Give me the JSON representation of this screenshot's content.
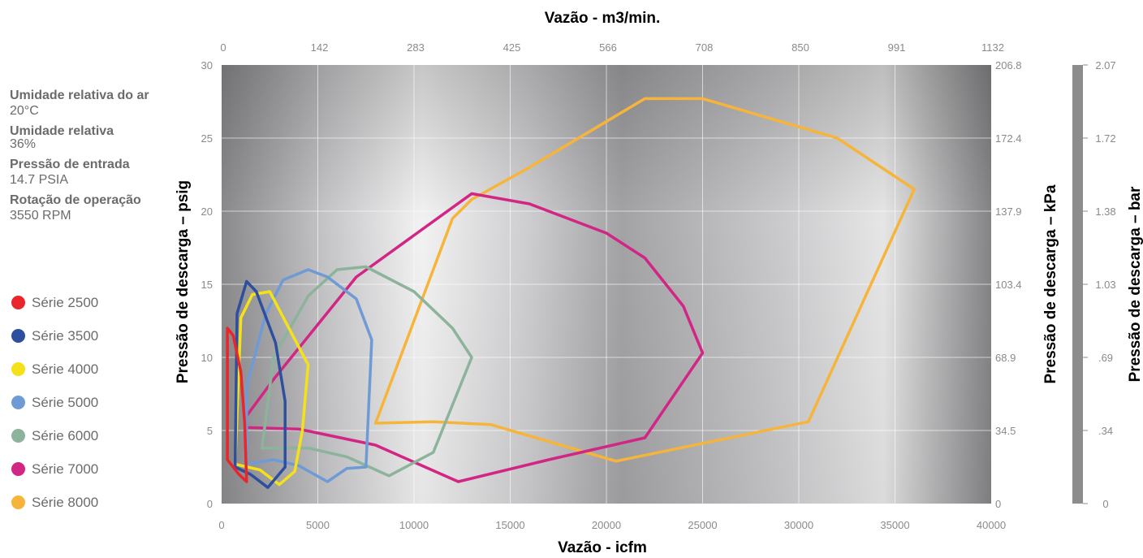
{
  "info": [
    {
      "label": "Umidade relativa do ar",
      "value": "20°C"
    },
    {
      "label": "Umidade relativa",
      "value": "36%"
    },
    {
      "label": "Pressão de entrada",
      "value": "14.7 PSIA"
    },
    {
      "label": "Rotação de operação",
      "value": "3550 RPM"
    }
  ],
  "chart_data": {
    "type": "area",
    "title": "Vazão - m3/min.",
    "xlabel": "Vazão - icfm",
    "ylabel": "Pressão de descarga – psig",
    "y2label": "Pressão de descarga – kPa",
    "y3label": "Pressão de descarga – bar",
    "xlim": [
      0,
      40000
    ],
    "ylim": [
      0,
      30
    ],
    "x_ticks": [
      "0",
      "5000",
      "10000",
      "15000",
      "20000",
      "25000",
      "30000",
      "35000",
      "40000"
    ],
    "x_top_ticks": [
      "0",
      "142",
      "283",
      "425",
      "566",
      "708",
      "850",
      "991",
      "1132"
    ],
    "y_ticks": [
      "0",
      "5",
      "10",
      "15",
      "20",
      "25",
      "30"
    ],
    "y_right_ticks": [
      "0",
      "34.5",
      "68.9",
      "103.4",
      "137.9",
      "172.4",
      "206.8"
    ],
    "bar_ticks": [
      "0",
      ".34",
      ".69",
      "1.03",
      "1.38",
      "1.72",
      "2.07"
    ],
    "grid": true,
    "legend_position": "left",
    "series": [
      {
        "name": "Série 2500",
        "color": "#e8262b",
        "points": [
          [
            300,
            3
          ],
          [
            300,
            12
          ],
          [
            600,
            11.5
          ],
          [
            1000,
            9
          ],
          [
            1200,
            5.5
          ],
          [
            1300,
            1.5
          ],
          [
            900,
            2
          ],
          [
            300,
            3
          ]
        ]
      },
      {
        "name": "Série 3500",
        "color": "#2e4f9e",
        "points": [
          [
            700,
            2.5
          ],
          [
            800,
            13
          ],
          [
            1300,
            15.2
          ],
          [
            1800,
            14.5
          ],
          [
            2800,
            11
          ],
          [
            3300,
            7
          ],
          [
            3300,
            2.5
          ],
          [
            2400,
            1.1
          ],
          [
            1500,
            2
          ],
          [
            700,
            2.5
          ]
        ]
      },
      {
        "name": "Série 4000",
        "color": "#f5e11a",
        "points": [
          [
            700,
            2.7
          ],
          [
            1000,
            12.7
          ],
          [
            1600,
            14.3
          ],
          [
            2500,
            14.5
          ],
          [
            3500,
            12
          ],
          [
            4500,
            9.5
          ],
          [
            4200,
            5
          ],
          [
            3800,
            2.2
          ],
          [
            3000,
            1.3
          ],
          [
            2000,
            2.3
          ],
          [
            700,
            2.7
          ]
        ]
      },
      {
        "name": "Série 5000",
        "color": "#6e9bd5",
        "points": [
          [
            1300,
            2.7
          ],
          [
            1300,
            8
          ],
          [
            2300,
            13
          ],
          [
            3200,
            15.3
          ],
          [
            4500,
            16
          ],
          [
            5500,
            15.5
          ],
          [
            7000,
            14
          ],
          [
            7800,
            11.2
          ],
          [
            7500,
            2.5
          ],
          [
            6500,
            2.4
          ],
          [
            5500,
            1.5
          ],
          [
            4000,
            2.6
          ],
          [
            2700,
            3
          ],
          [
            1300,
            2.7
          ]
        ]
      },
      {
        "name": "Série 6000",
        "color": "#8cb39b",
        "points": [
          [
            2100,
            3.8
          ],
          [
            2700,
            10
          ],
          [
            4500,
            14.2
          ],
          [
            6000,
            16
          ],
          [
            7500,
            16.2
          ],
          [
            10000,
            14.5
          ],
          [
            12000,
            12
          ],
          [
            13000,
            10
          ],
          [
            11000,
            3.5
          ],
          [
            8700,
            1.9
          ],
          [
            6500,
            3.2
          ],
          [
            4500,
            3.8
          ],
          [
            2100,
            3.8
          ]
        ]
      },
      {
        "name": "Série 7000",
        "color": "#d22684",
        "points": [
          [
            1300,
            5.2
          ],
          [
            1300,
            6
          ],
          [
            2700,
            8.5
          ],
          [
            7000,
            15.5
          ],
          [
            13000,
            21.2
          ],
          [
            16000,
            20.5
          ],
          [
            20000,
            18.5
          ],
          [
            22000,
            16.8
          ],
          [
            24000,
            13.5
          ],
          [
            25000,
            10.3
          ],
          [
            22000,
            4.5
          ],
          [
            17000,
            3
          ],
          [
            12300,
            1.5
          ],
          [
            8000,
            4
          ],
          [
            4000,
            5.1
          ],
          [
            1300,
            5.2
          ]
        ]
      },
      {
        "name": "Série 8000",
        "color": "#f6b53a",
        "points": [
          [
            8000,
            5.5
          ],
          [
            12000,
            19.5
          ],
          [
            13000,
            20.8
          ],
          [
            16000,
            23
          ],
          [
            22000,
            27.7
          ],
          [
            25000,
            27.7
          ],
          [
            32000,
            25
          ],
          [
            36000,
            21.5
          ],
          [
            30500,
            5.6
          ],
          [
            20500,
            2.9
          ],
          [
            14000,
            5.4
          ],
          [
            11000,
            5.6
          ],
          [
            8000,
            5.5
          ]
        ]
      }
    ]
  }
}
